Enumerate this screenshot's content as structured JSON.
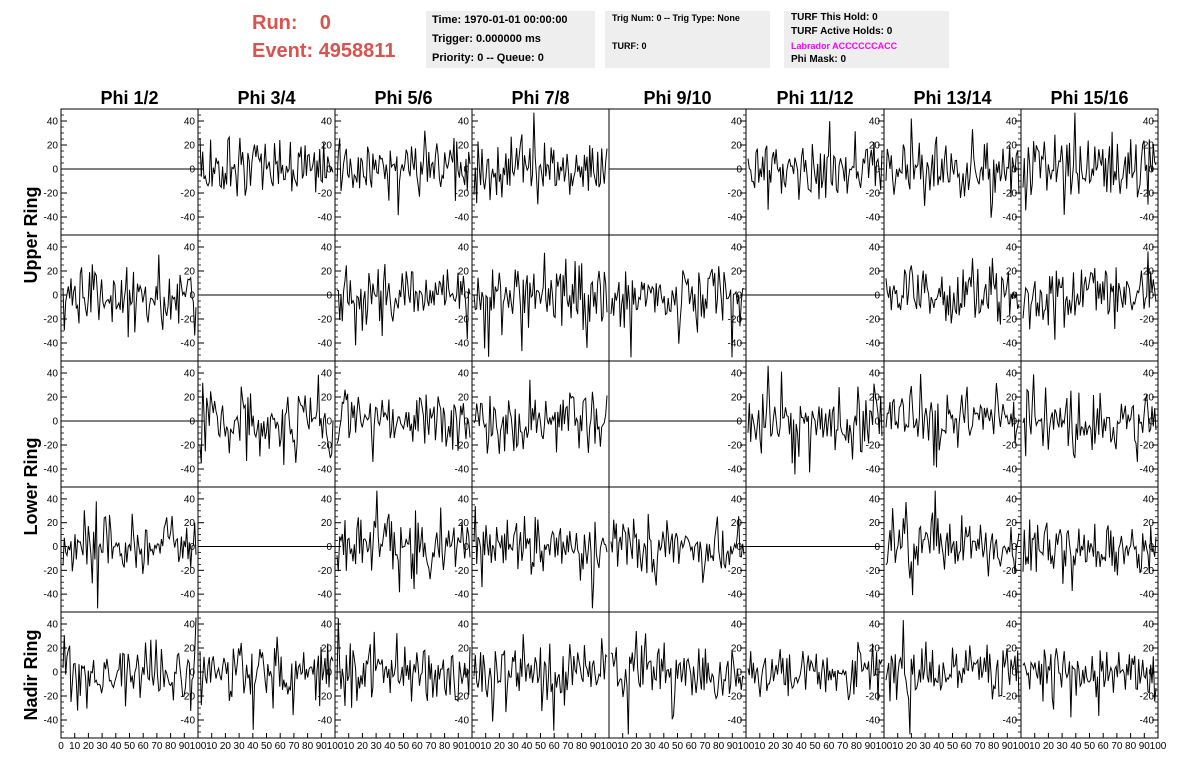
{
  "header": {
    "run_label": "Run:",
    "run_value": "0",
    "event_label": "Event:",
    "event_value": "4958811",
    "run_color": "#d9534f"
  },
  "info_box_1": {
    "time": "Time: 1970-01-01 00:00:00",
    "trigger": "Trigger: 0.000000 ms",
    "priority": "Priority: 0 -- Queue: 0"
  },
  "info_box_2": {
    "trig_num": "Trig Num: 0 -- Trig Type: None",
    "turf": "TURF: 0"
  },
  "info_box_3": {
    "turf_this_hold": "TURF This Hold: 0",
    "turf_active_holds": "TURF Active Holds: 0",
    "labrador": "Labrador ACCCCCCACC",
    "labrador_color": "#ff00ff",
    "phi_mask": "Phi Mask: 0"
  },
  "chart_data": {
    "type": "line",
    "columns": [
      "Phi 1/2",
      "Phi 3/4",
      "Phi 5/6",
      "Phi 7/8",
      "Phi 9/10",
      "Phi 11/12",
      "Phi 13/14",
      "Phi 15/16"
    ],
    "rows": [
      "Upper Ring",
      "Upper Ring",
      "Lower Ring",
      "Lower Ring",
      "Nadir Ring"
    ],
    "row_labels": [
      {
        "label": "Upper Ring",
        "spans_rows": [
          0,
          1
        ]
      },
      {
        "label": "Lower Ring",
        "spans_rows": [
          2,
          3
        ]
      },
      {
        "label": "Nadir Ring",
        "spans_rows": [
          4
        ]
      }
    ],
    "ylim": [
      -55,
      50
    ],
    "yticks": [
      -40,
      -20,
      0,
      20,
      40
    ],
    "xlim": [
      0,
      100
    ],
    "xticks": [
      0,
      10,
      20,
      30,
      40,
      50,
      60,
      70,
      80,
      90,
      100
    ],
    "ytick_side": "left for columns 1-4, right for columns 5-8",
    "flat_panels": [
      [
        0,
        0
      ],
      [
        0,
        4
      ],
      [
        1,
        1
      ],
      [
        1,
        5
      ],
      [
        2,
        0
      ],
      [
        2,
        4
      ],
      [
        3,
        1
      ],
      [
        3,
        5
      ]
    ],
    "samples_per_trace": 100,
    "trace_amplitude_approx": 15,
    "series_color": "#000000"
  }
}
